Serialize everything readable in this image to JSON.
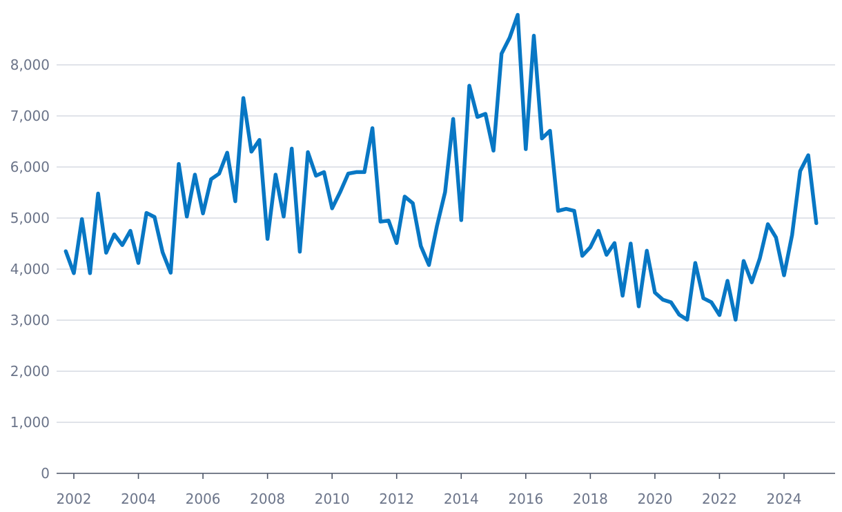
{
  "chart_data": {
    "type": "line",
    "title": "",
    "xlabel": "",
    "ylabel": "",
    "ylim": [
      0,
      9000
    ],
    "xlim": [
      2001.75,
      2025.5
    ],
    "y_ticks": [
      0,
      1000,
      2000,
      3000,
      4000,
      5000,
      6000,
      7000,
      8000
    ],
    "y_tick_labels": [
      "0",
      "1,000",
      "2,000",
      "3,000",
      "4,000",
      "5,000",
      "6,000",
      "7,000",
      "8,000"
    ],
    "x_ticks": [
      2002,
      2004,
      2006,
      2008,
      2010,
      2012,
      2014,
      2016,
      2018,
      2020,
      2022,
      2024
    ],
    "x_tick_labels": [
      "2002",
      "2004",
      "2006",
      "2008",
      "2010",
      "2012",
      "2014",
      "2016",
      "2018",
      "2020",
      "2022",
      "2024"
    ],
    "grid": true,
    "legend": "none",
    "colors": {
      "series": "#0877c4",
      "grid": "#d5dae2",
      "axis": "#4a5366",
      "tick_label": "#6b7489"
    },
    "series": [
      {
        "values": [
          4350,
          3920,
          4980,
          3920,
          5480,
          4320,
          4680,
          4470,
          4750,
          4120,
          5100,
          5020,
          4330,
          3930,
          6060,
          5030,
          5850,
          5090,
          5760,
          5870,
          6280,
          5330,
          7350,
          6300,
          6530,
          4590,
          5850,
          5030,
          6360,
          4340,
          6290,
          5830,
          5900,
          5190,
          5510,
          5870,
          5900,
          5900,
          6760,
          4930,
          4950,
          4510,
          5420,
          5290,
          4450,
          4080,
          4850,
          5510,
          6940,
          4960,
          7590,
          6980,
          7040,
          6320,
          8220,
          8530,
          8980,
          6350,
          8570,
          6560,
          6710,
          5140,
          5180,
          5140,
          4260,
          4430,
          4750,
          4280,
          4510,
          3480,
          4500,
          3270,
          4360,
          3540,
          3400,
          3350,
          3110,
          3010,
          4120,
          3430,
          3350,
          3100,
          3770,
          3010,
          4160,
          3740,
          4210,
          4880,
          4620,
          3880,
          4670,
          5920,
          6230,
          4900
        ]
      }
    ]
  }
}
